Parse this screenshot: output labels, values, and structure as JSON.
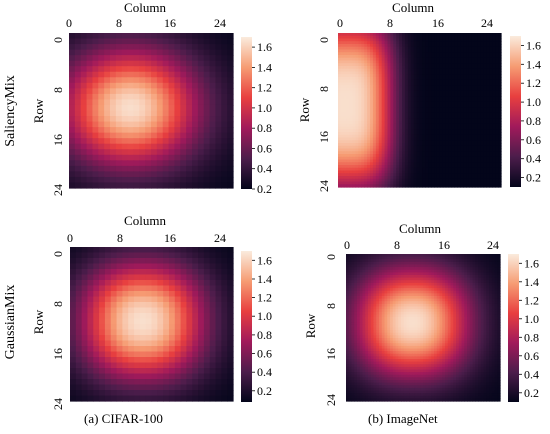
{
  "captions": {
    "left": "(a) CIFAR-100",
    "right": "(b) ImageNet"
  },
  "row_labels": [
    "SaliencyMix",
    "GaussianMix"
  ],
  "colormap": {
    "name": "rocket",
    "stops": [
      "#03051a",
      "#4c1d4b",
      "#a11a5b",
      "#e83f3f",
      "#f69c73",
      "#faebdd"
    ]
  },
  "chart_data": [
    {
      "type": "heatmap",
      "name": "SaliencyMix / CIFAR-100",
      "xlabel": "Column",
      "ylabel": "Row",
      "grid_size": 28,
      "xticks": [
        0,
        8,
        16,
        24
      ],
      "yticks": [
        0,
        8,
        16,
        24
      ],
      "colorbar": {
        "range": [
          0.2,
          1.7
        ],
        "ticks": [
          0.2,
          0.4,
          0.6,
          0.8,
          1.0,
          1.2,
          1.4,
          1.6
        ]
      },
      "peak": {
        "row": 13,
        "col": 10
      },
      "spread": {
        "row": 10,
        "col": 11
      }
    },
    {
      "type": "heatmap",
      "name": "SaliencyMix / ImageNet",
      "xlabel": "Column",
      "ylabel": "Row",
      "grid_size": 224,
      "xticks": [
        0,
        8,
        16,
        24
      ],
      "yticks": [
        0,
        8,
        16,
        24
      ],
      "colorbar": {
        "range": [
          0.1,
          1.7
        ],
        "ticks": [
          0.2,
          0.4,
          0.6,
          0.8,
          1.0,
          1.2,
          1.4,
          1.6
        ]
      },
      "peak": {
        "row": 13,
        "col": 1
      },
      "spread": {
        "row": 15,
        "col": 8
      },
      "edge_sharpness": 3.2
    },
    {
      "type": "heatmap",
      "name": "GaussianMix / CIFAR-100",
      "xlabel": "Column",
      "ylabel": "Row",
      "grid_size": 28,
      "xticks": [
        0,
        8,
        16,
        24
      ],
      "yticks": [
        0,
        8,
        16,
        24
      ],
      "colorbar": {
        "range": [
          0.08,
          1.7
        ],
        "ticks": [
          0.2,
          0.4,
          0.6,
          0.8,
          1.0,
          1.2,
          1.4,
          1.6
        ]
      },
      "peak": {
        "row": 13,
        "col": 12
      },
      "spread": {
        "row": 10,
        "col": 10
      },
      "edge_sharpness": 2.2
    },
    {
      "type": "heatmap",
      "name": "GaussianMix / ImageNet",
      "xlabel": "Column",
      "ylabel": "Row",
      "grid_size": 224,
      "xticks": [
        0,
        8,
        16,
        24
      ],
      "yticks": [
        0,
        8,
        16,
        24
      ],
      "colorbar": {
        "range": [
          0.1,
          1.7
        ],
        "ticks": [
          0.2,
          0.4,
          0.6,
          0.8,
          1.0,
          1.2,
          1.4,
          1.6
        ]
      },
      "peak": {
        "row": 13,
        "col": 12
      },
      "spread": {
        "row": 10,
        "col": 10
      },
      "edge_sharpness": 2.2
    }
  ]
}
